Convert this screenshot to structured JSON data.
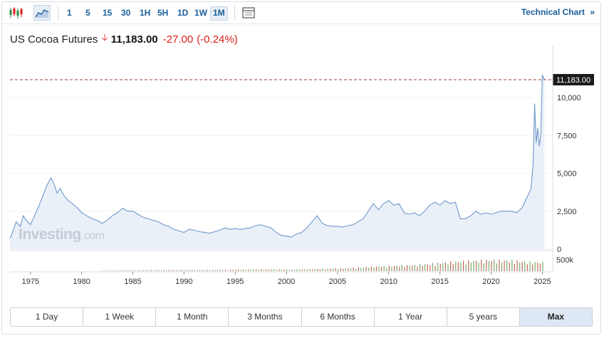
{
  "toolbar": {
    "intervals": [
      "1",
      "5",
      "15",
      "30",
      "1H",
      "5H",
      "1D",
      "1W",
      "1M"
    ],
    "active_interval": "1M",
    "technical_chart": "Technical Chart",
    "technical_chevron": "»"
  },
  "quote": {
    "name": "US Cocoa Futures",
    "price": "11,183.00",
    "change": "-27.00",
    "change_pct": "(-0.24%)",
    "direction": "down",
    "down_color": "#d91e18"
  },
  "watermark": {
    "brand": "Investing",
    "suffix": ".com"
  },
  "price_label": "11,183.00",
  "ranges": [
    "1 Day",
    "1 Week",
    "1 Month",
    "3 Months",
    "6 Months",
    "1 Year",
    "5 years",
    "Max"
  ],
  "active_range": "Max",
  "chart_data": {
    "type": "area",
    "title": "",
    "xlabel": "",
    "ylabel": "",
    "x_ticks": [
      "1975",
      "1980",
      "1985",
      "1990",
      "1995",
      "2000",
      "2005",
      "2010",
      "2015",
      "2020",
      "2025"
    ],
    "y_ticks": [
      "0",
      "2,500",
      "5,000",
      "7,500",
      "10,000"
    ],
    "volume_tick": "500k",
    "xlim": [
      1973,
      2025.6
    ],
    "ylim": [
      0,
      11700
    ],
    "last_price": 11183,
    "line_color": "#6e98cc",
    "fill_color": "#e9f0f8",
    "series": [
      {
        "x": [
          1973.0,
          1973.3,
          1973.6,
          1974.0,
          1974.3,
          1974.6,
          1975.0,
          1975.4,
          1975.8,
          1976.2,
          1976.6,
          1977.0,
          1977.3,
          1977.6,
          1977.9,
          1978.3,
          1978.7,
          1979.1,
          1979.6,
          1980.0,
          1980.5,
          1981.0,
          1981.5,
          1982.0,
          1982.5,
          1983.0,
          1983.5,
          1984.0,
          1984.5,
          1985.0,
          1985.5,
          1986.0,
          1986.5,
          1987.0,
          1987.5,
          1988.0,
          1988.5,
          1989.0,
          1989.5,
          1990.0,
          1990.5,
          1991.0,
          1991.5,
          1992.0,
          1992.5,
          1993.0,
          1993.5,
          1994.0,
          1994.5,
          1995.0,
          1995.5,
          1996.0,
          1996.5,
          1997.0,
          1997.5,
          1998.0,
          1998.5,
          1999.0,
          1999.5,
          2000.0,
          2000.5,
          2001.0,
          2001.5,
          2002.0,
          2002.5,
          2003.0,
          2003.5,
          2004.0,
          2004.5,
          2005.0,
          2005.5,
          2006.0,
          2006.5,
          2007.0,
          2007.5,
          2008.0,
          2008.5,
          2009.0,
          2009.5,
          2010.0,
          2010.5,
          2011.0,
          2011.5,
          2012.0,
          2012.5,
          2013.0,
          2013.5,
          2014.0,
          2014.5,
          2015.0,
          2015.5,
          2016.0,
          2016.5,
          2017.0,
          2017.5,
          2018.0,
          2018.5,
          2019.0,
          2019.5,
          2020.0,
          2020.5,
          2021.0,
          2021.5,
          2022.0,
          2022.5,
          2023.0,
          2023.5,
          2023.9,
          2024.1,
          2024.25,
          2024.4,
          2024.55,
          2024.7,
          2024.85,
          2025.0,
          2025.2
        ],
        "values": [
          700,
          1200,
          1800,
          1500,
          2200,
          1900,
          1600,
          2200,
          2800,
          3500,
          4200,
          4700,
          4300,
          3700,
          4000,
          3500,
          3200,
          3000,
          2700,
          2400,
          2200,
          2000,
          1900,
          1700,
          1900,
          2200,
          2400,
          2700,
          2500,
          2500,
          2300,
          2100,
          2000,
          1900,
          1800,
          1600,
          1500,
          1300,
          1200,
          1100,
          1300,
          1250,
          1150,
          1100,
          1050,
          1150,
          1250,
          1400,
          1300,
          1350,
          1300,
          1350,
          1400,
          1550,
          1600,
          1500,
          1400,
          1100,
          900,
          850,
          800,
          1000,
          1100,
          1400,
          1800,
          2200,
          1700,
          1550,
          1500,
          1500,
          1450,
          1550,
          1600,
          1800,
          2000,
          2500,
          3000,
          2600,
          3000,
          3200,
          2900,
          3000,
          2400,
          2300,
          2400,
          2200,
          2500,
          2900,
          3100,
          2900,
          3200,
          3000,
          3100,
          2000,
          2000,
          2200,
          2500,
          2300,
          2400,
          2300,
          2400,
          2500,
          2500,
          2500,
          2400,
          2700,
          3400,
          4000,
          5600,
          9600,
          7000,
          8000,
          6800,
          7500,
          11500,
          11183
        ]
      }
    ],
    "volume_units": "k",
    "volume_series": {
      "x": [
        1982,
        1984,
        1986,
        1988,
        1990,
        1992,
        1994,
        1996,
        1998,
        2000,
        2002,
        2004,
        2006,
        2008,
        2010,
        2012,
        2014,
        2016,
        2018,
        2020,
        2022,
        2024
      ],
      "values": [
        20,
        28,
        35,
        40,
        45,
        40,
        50,
        60,
        70,
        55,
        70,
        90,
        110,
        150,
        190,
        210,
        260,
        330,
        370,
        400,
        380,
        320
      ]
    }
  }
}
